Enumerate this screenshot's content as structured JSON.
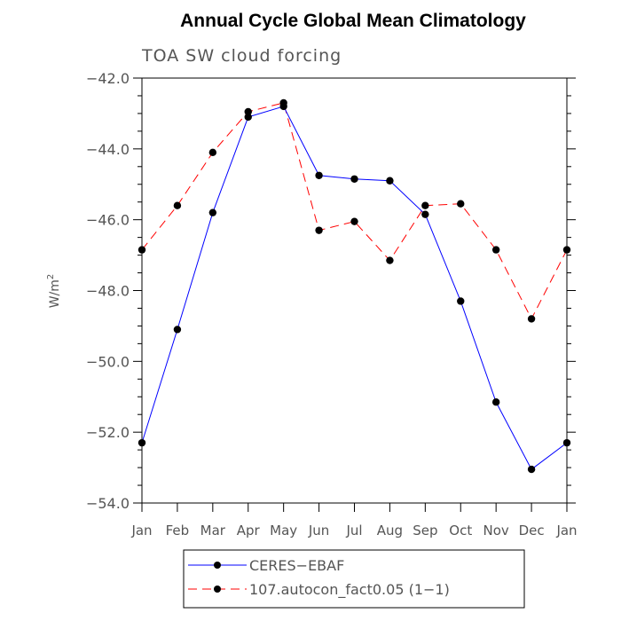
{
  "chart_data": {
    "type": "line",
    "title": "Annual Cycle Global Mean Climatology",
    "subtitle": "TOA SW cloud forcing",
    "ylabel": "W/m",
    "ylabel_sup": "2",
    "ylim": [
      -54.0,
      -42.0
    ],
    "yticks": [
      -42.0,
      -44.0,
      -46.0,
      -48.0,
      -50.0,
      -52.0,
      -54.0
    ],
    "ytick_labels": [
      "−42.0",
      "−44.0",
      "−46.0",
      "−48.0",
      "−50.0",
      "−52.0",
      "−54.0"
    ],
    "categories": [
      "Jan",
      "Feb",
      "Mar",
      "Apr",
      "May",
      "Jun",
      "Jul",
      "Aug",
      "Sep",
      "Oct",
      "Nov",
      "Dec",
      "Jan"
    ],
    "series": [
      {
        "name": "CERES−EBAF",
        "color": "#0000ff",
        "dash": "solid",
        "values": [
          -52.3,
          -49.1,
          -45.8,
          -43.1,
          -42.8,
          -44.75,
          -44.85,
          -44.9,
          -45.85,
          -48.3,
          -51.15,
          -53.05,
          -52.3
        ]
      },
      {
        "name": "107.autocon_fact0.05 (1−1)",
        "color": "#ff0000",
        "dash": "dashed",
        "values": [
          -46.85,
          -45.6,
          -44.1,
          -42.95,
          -42.7,
          -46.3,
          -46.05,
          -47.15,
          -45.6,
          -45.55,
          -46.85,
          -48.8,
          -46.85
        ]
      }
    ],
    "legend_position": "bottom-center"
  }
}
